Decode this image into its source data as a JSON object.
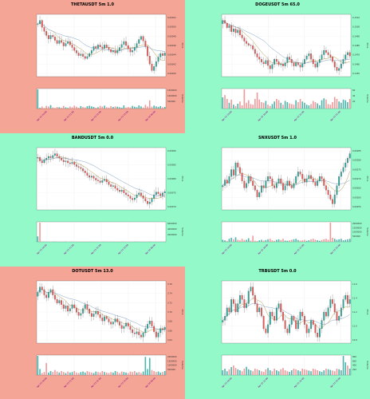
{
  "panel_colors": {
    "red": "#f4a595",
    "green": "#93f9c9"
  },
  "candle_colors": {
    "up": "#26a69a",
    "down": "#ef5350",
    "vol_up": "#4db6ac",
    "vol_down": "#ef9a9a",
    "ma1": "#b59a4f",
    "ma2": "#7fa0c4"
  },
  "chart_data": [
    {
      "type": "candlestick",
      "title": "THETAUSDT 5m 1.0",
      "background": "red",
      "ylabel": "Price",
      "volume_label": "Volume",
      "y_ticks": [
        "0.00052",
        "0.00050",
        "0.00048",
        "0.00046",
        "0.00044",
        "0.00042",
        "0.00040"
      ],
      "vol_ticks": [
        "1500000",
        "1000000",
        "500000"
      ],
      "x_ticks": [
        "Apr 25 20:00",
        "Apr 25 21:00",
        "Apr 25 22:00",
        "Apr 25 23:00",
        "Apr 26 00:00"
      ],
      "close": [
        0.000505,
        0.000512,
        0.000498,
        0.00049,
        0.000482,
        0.000475,
        0.000482,
        0.000479,
        0.000472,
        0.000466,
        0.000472,
        0.000468,
        0.000461,
        0.000466,
        0.00047,
        0.000463,
        0.000458,
        0.000452,
        0.000447,
        0.000442,
        0.000445,
        0.00044,
        0.000436,
        0.00044,
        0.000446,
        0.000452,
        0.00046,
        0.000456,
        0.000463,
        0.000459,
        0.000456,
        0.000463,
        0.000458,
        0.000454,
        0.000449,
        0.000452,
        0.000447,
        0.000452,
        0.000458,
        0.000464,
        0.00047,
        0.000462,
        0.000455,
        0.000449,
        0.000452,
        0.000458,
        0.000466,
        0.000474,
        0.00048,
        0.000471,
        0.00046,
        0.000441,
        0.000425,
        0.000412,
        0.00042,
        0.00043,
        0.000439,
        0.000446,
        0.000442,
        0.000447
      ],
      "volume": [
        1450000,
        60000,
        150000,
        40000,
        200000,
        150000,
        260000,
        80000,
        40000,
        120000,
        100000,
        60000,
        200000,
        90000,
        50000,
        150000,
        100000,
        220000,
        140000,
        60000,
        180000,
        120000,
        90000,
        180000,
        210000,
        160000,
        120000,
        60000,
        100000,
        200000,
        150000,
        220000,
        100000,
        80000,
        180000,
        120000,
        160000,
        140000,
        100000,
        60000,
        240000,
        80000,
        120000,
        90000,
        200000,
        140000,
        100000,
        240000,
        160000,
        80000,
        280000,
        160000,
        620000,
        140000,
        220000,
        160000,
        120000,
        180000,
        100000,
        120000
      ]
    },
    {
      "type": "candlestick",
      "title": "DOGEUSDT 5m 65.0",
      "background": "green",
      "ylabel": "Price",
      "volume_label": "Volume",
      "y_ticks": [
        "0.1510",
        "0.1500",
        "0.1490",
        "0.1480",
        "0.1470",
        "0.1460",
        "0.1450"
      ],
      "vol_ticks": [
        "60",
        "40",
        "20"
      ],
      "x_ticks": [
        "Apr 25 19:00",
        "Apr 25 20:00",
        "Apr 25 21:00",
        "Apr 25 22:00"
      ],
      "close": [
        0.15085,
        0.1506,
        0.1502,
        0.1504,
        0.14985,
        0.1501,
        0.14975,
        0.15,
        0.14955,
        0.1493,
        0.149,
        0.1488,
        0.14865,
        0.1486,
        0.1483,
        0.1479,
        0.1476,
        0.1474,
        0.14715,
        0.147,
        0.1473,
        0.14685,
        0.14655,
        0.14695,
        0.1474,
        0.1472,
        0.1469,
        0.147,
        0.1468,
        0.1471,
        0.1476,
        0.1474,
        0.1471,
        0.1468,
        0.1471,
        0.1469,
        0.1467,
        0.147,
        0.1474,
        0.1477,
        0.1479,
        0.1474,
        0.147,
        0.1467,
        0.1471,
        0.1474,
        0.1478,
        0.1482,
        0.148,
        0.1478,
        0.1476,
        0.1472,
        0.1467,
        0.1464,
        0.1466,
        0.147,
        0.1474,
        0.1478,
        0.148,
        0.1477
      ],
      "volume": [
        35,
        42,
        30,
        18,
        28,
        12,
        8,
        15,
        22,
        10,
        60,
        18,
        26,
        14,
        12,
        30,
        50,
        28,
        20,
        18,
        24,
        12,
        8,
        14,
        22,
        30,
        26,
        18,
        12,
        24,
        20,
        16,
        14,
        12,
        26,
        20,
        30,
        22,
        18,
        12,
        10,
        14,
        24,
        20,
        16,
        10,
        26,
        32,
        28,
        14,
        12,
        20,
        36,
        30,
        22,
        18,
        28,
        26,
        20,
        30
      ]
    },
    {
      "type": "candlestick",
      "title": "BANDUSDT 5m 0.0",
      "background": "green",
      "ylabel": "Price",
      "volume_label": "Volume",
      "y_ticks": [
        "0.00090",
        "0.00085",
        "0.00080",
        "0.00075",
        "0.00070"
      ],
      "vol_ticks": [
        "6000000",
        "4000000",
        "2000000"
      ],
      "x_ticks": [
        "Apr 25 20:00",
        "Apr 25 21:00",
        "Apr 25 22:00",
        "Apr 25 23:00",
        "Apr 26 00:00"
      ],
      "close": [
        0.00082,
        0.000812,
        0.000808,
        0.000815,
        0.000818,
        0.000822,
        0.000819,
        0.000824,
        0.000828,
        0.000822,
        0.000818,
        0.000814,
        0.00081,
        0.000812,
        0.000808,
        0.000806,
        0.000809,
        0.000804,
        0.0008,
        0.000798,
        0.000795,
        0.00079,
        0.000786,
        0.00078,
        0.000776,
        0.000779,
        0.000774,
        0.00077,
        0.000768,
        0.000765,
        0.000769,
        0.000772,
        0.000766,
        0.00076,
        0.000756,
        0.000758,
        0.000752,
        0.000748,
        0.000745,
        0.000748,
        0.000742,
        0.000738,
        0.000735,
        0.00073,
        0.000727,
        0.000731,
        0.000738,
        0.000742,
        0.000736,
        0.00073,
        0.000724,
        0.000718,
        0.000722,
        0.00073,
        0.000738,
        0.000744,
        0.00074,
        0.000736,
        0.000742,
        0.000745
      ],
      "volume": [
        1800000,
        6400000,
        120000,
        80000,
        60000,
        40000,
        30000,
        60000,
        90000,
        40000,
        30000,
        60000,
        40000,
        80000,
        30000,
        20000,
        40000,
        30000,
        60000,
        20000,
        30000,
        40000,
        20000,
        60000,
        80000,
        30000,
        20000,
        40000,
        30000,
        20000,
        60000,
        30000,
        40000,
        20000,
        30000,
        40000,
        60000,
        30000,
        20000,
        40000,
        80000,
        30000,
        20000,
        40000,
        30000,
        60000,
        40000,
        20000,
        30000,
        40000,
        20000,
        30000,
        60000,
        40000,
        20000,
        30000,
        40000,
        60000,
        30000,
        40000
      ]
    },
    {
      "type": "candlestick",
      "title": "SNXUSDT 5m 1.0",
      "background": "green",
      "ylabel": "Price",
      "volume_label": "Volume",
      "y_ticks": [
        "0.00285",
        "0.00280",
        "0.00275",
        "0.00270",
        "0.00265",
        "0.00260",
        "0.00255"
      ],
      "vol_ticks": [
        "2000000",
        "1500000",
        "1000000",
        "500000"
      ],
      "x_ticks": [
        "Apr 25 19:00",
        "Apr 25 20:00",
        "Apr 25 21:00",
        "Apr 25 22:00"
      ],
      "close": [
        0.0027,
        0.002725,
        0.00271,
        0.00274,
        0.00277,
        0.002745,
        0.0028,
        0.00278,
        0.002755,
        0.00272,
        0.00269,
        0.00271,
        0.00274,
        0.00272,
        0.0027,
        0.00268,
        0.00265,
        0.00267,
        0.0027,
        0.00269,
        0.00272,
        0.00274,
        0.00273,
        0.0027,
        0.00269,
        0.00271,
        0.00273,
        0.00271,
        0.00268,
        0.0027,
        0.00272,
        0.0027,
        0.00269,
        0.00271,
        0.00274,
        0.00276,
        0.00275,
        0.00273,
        0.002715,
        0.00273,
        0.002745,
        0.00273,
        0.002715,
        0.0027,
        0.00272,
        0.00274,
        0.00273,
        0.0027,
        0.00268,
        0.00266,
        0.00264,
        0.00262,
        0.00266,
        0.0027,
        0.00274,
        0.00276,
        0.00278,
        0.0028,
        0.00282,
        0.00284
      ],
      "volume": [
        200000,
        150000,
        100000,
        300000,
        400000,
        250000,
        450000,
        200000,
        150000,
        300000,
        180000,
        200000,
        350000,
        120000,
        600000,
        100000,
        80000,
        150000,
        200000,
        120000,
        180000,
        250000,
        300000,
        150000,
        100000,
        200000,
        250000,
        180000,
        300000,
        120000,
        100000,
        150000,
        200000,
        250000,
        300000,
        180000,
        120000,
        150000,
        200000,
        100000,
        150000,
        250000,
        300000,
        200000,
        150000,
        100000,
        180000,
        250000,
        300000,
        200000,
        1900000,
        400000,
        300000,
        200000,
        250000,
        300000,
        150000,
        200000,
        250000,
        300000
      ]
    },
    {
      "type": "candlestick",
      "title": "DOTUSDT 5m 13.0",
      "background": "red",
      "ylabel": "Price",
      "volume_label": "Volume",
      "y_ticks": [
        "3.76",
        "3.74",
        "3.72",
        "3.70",
        "3.68",
        "3.66",
        "3.64"
      ],
      "vol_ticks": [
        "2000000",
        "1500000",
        "1000000",
        "500000"
      ],
      "x_ticks": [
        "Apr 25 20:00",
        "Apr 25 21:00",
        "Apr 25 22:00",
        "Apr 25 23:00",
        "Apr 26 00:00"
      ],
      "close": [
        3.735,
        3.745,
        3.74,
        3.73,
        3.725,
        3.735,
        3.74,
        3.73,
        3.722,
        3.715,
        3.72,
        3.712,
        3.705,
        3.71,
        3.7,
        3.705,
        3.712,
        3.706,
        3.698,
        3.692,
        3.696,
        3.705,
        3.712,
        3.704,
        3.696,
        3.69,
        3.695,
        3.7,
        3.694,
        3.688,
        3.682,
        3.69,
        3.686,
        3.68,
        3.676,
        3.68,
        3.686,
        3.68,
        3.674,
        3.668,
        3.672,
        3.678,
        3.672,
        3.666,
        3.66,
        3.658,
        3.662,
        3.656,
        3.652,
        3.66,
        3.668,
        3.676,
        3.682,
        3.672,
        3.662,
        3.652,
        3.66,
        3.668,
        3.666,
        3.67
      ],
      "volume": [
        1900000,
        600000,
        200000,
        300000,
        1200000,
        250000,
        400000,
        300000,
        500000,
        350000,
        250000,
        400000,
        300000,
        200000,
        350000,
        250000,
        300000,
        400000,
        250000,
        200000,
        300000,
        350000,
        250000,
        400000,
        300000,
        250000,
        200000,
        350000,
        300000,
        250000,
        400000,
        300000,
        250000,
        200000,
        300000,
        250000,
        400000,
        300000,
        200000,
        350000,
        300000,
        250000,
        200000,
        350000,
        300000,
        400000,
        250000,
        300000,
        200000,
        350000,
        1800000,
        600000,
        1700000,
        500000,
        400000,
        300000,
        350000,
        250000,
        300000,
        400000
      ]
    },
    {
      "type": "candlestick",
      "title": "TRBUSDT 5m 0.0",
      "background": "green",
      "ylabel": "Price",
      "volume_label": "Volume",
      "y_ticks": [
        "11.6",
        "11.4",
        "11.2",
        "11.0",
        "10.8"
      ],
      "vol_ticks": [
        "800",
        "600",
        "400",
        "200"
      ],
      "x_ticks": [
        "Apr 25 20:00",
        "Apr 25 21:00",
        "Apr 25 22:00",
        "Apr 25 23:00"
      ],
      "close": [
        11.2,
        11.25,
        11.35,
        11.3,
        11.45,
        11.4,
        11.3,
        11.4,
        11.5,
        11.45,
        11.35,
        11.4,
        11.55,
        11.6,
        11.5,
        11.4,
        11.3,
        11.35,
        11.25,
        11.1,
        11.05,
        11.15,
        11.3,
        11.25,
        11.2,
        11.35,
        11.4,
        11.3,
        11.2,
        11.1,
        11.05,
        11.15,
        11.25,
        11.2,
        11.1,
        11.2,
        11.3,
        11.25,
        11.15,
        11.05,
        11.1,
        11.2,
        11.15,
        11.05,
        11.0,
        11.1,
        11.2,
        11.3,
        11.25,
        11.35,
        11.45,
        11.4,
        11.3,
        11.2,
        11.25,
        11.35,
        11.45,
        11.5,
        11.4,
        11.45
      ],
      "volume": [
        150,
        200,
        120,
        180,
        250,
        300,
        220,
        180,
        150,
        120,
        200,
        260,
        180,
        150,
        120,
        200,
        180,
        150,
        120,
        100,
        180,
        220,
        150,
        120,
        200,
        150,
        120,
        180,
        220,
        150,
        120,
        100,
        150,
        200,
        180,
        150,
        120,
        200,
        180,
        160,
        140,
        120,
        200,
        180,
        150,
        120,
        100,
        150,
        200,
        180,
        160,
        140,
        120,
        200,
        180,
        150,
        600,
        400,
        300,
        200
      ]
    }
  ]
}
